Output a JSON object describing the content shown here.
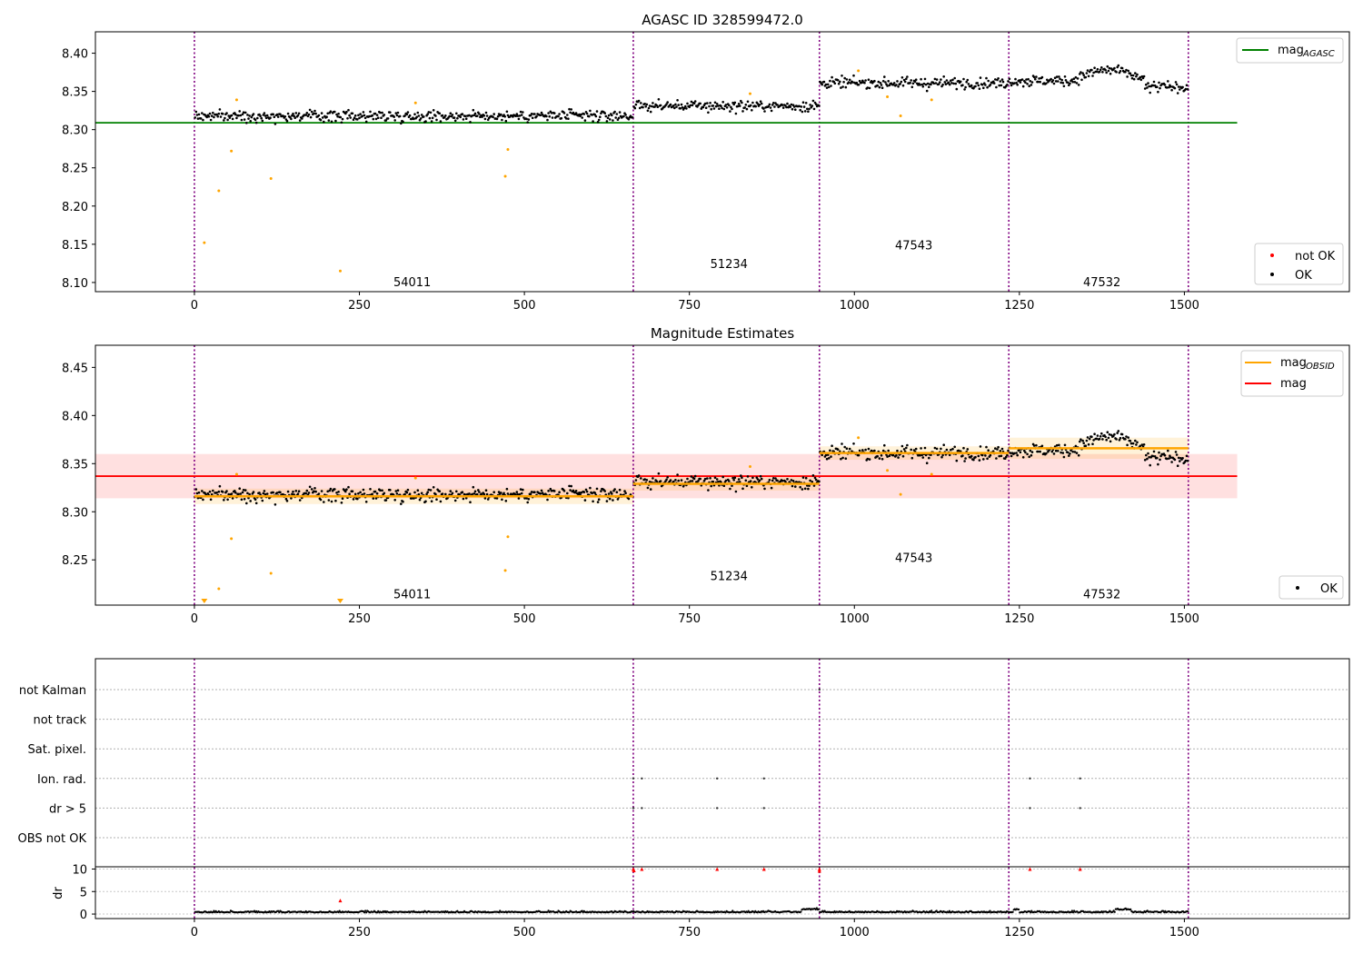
{
  "chart_data": [
    {
      "type": "scatter",
      "title": "AGASC ID 328599472.0",
      "xlim": [
        -150,
        1750
      ],
      "ylim": [
        8.088,
        8.428
      ],
      "xticks": [
        0,
        250,
        500,
        750,
        1000,
        1250,
        1500
      ],
      "yticks": [
        8.1,
        8.15,
        8.2,
        8.25,
        8.3,
        8.35,
        8.4
      ],
      "ytick_labels": [
        "8.10",
        "8.15",
        "8.20",
        "8.25",
        "8.30",
        "8.35",
        "8.40"
      ],
      "obs_boundaries": [
        0,
        665,
        947,
        1234,
        1506
      ],
      "obsids": [
        {
          "label": "54011",
          "x": 330,
          "y": 8.095
        },
        {
          "label": "51234",
          "x": 810,
          "y": 8.119
        },
        {
          "label": "47543",
          "x": 1090,
          "y": 8.143
        },
        {
          "label": "47532",
          "x": 1375,
          "y": 8.095
        }
      ],
      "mag_agasc": {
        "value": 8.309,
        "x_range": [
          -150,
          1580
        ],
        "color": "#008000"
      },
      "segments_ok": [
        {
          "x": [
            0,
            665
          ],
          "level": 8.318
        },
        {
          "x": [
            665,
            947
          ],
          "level": 8.331
        },
        {
          "x": [
            947,
            1234
          ],
          "level": 8.361
        },
        {
          "x": [
            1234,
            1506
          ],
          "level": 8.364
        }
      ],
      "not_ok_points": [
        {
          "x": 15,
          "y": 8.152
        },
        {
          "x": 37,
          "y": 8.22
        },
        {
          "x": 56,
          "y": 8.272
        },
        {
          "x": 64,
          "y": 8.339
        },
        {
          "x": 116,
          "y": 8.236
        },
        {
          "x": 221,
          "y": 8.115
        },
        {
          "x": 335,
          "y": 8.335
        },
        {
          "x": 471,
          "y": 8.239
        },
        {
          "x": 475,
          "y": 8.274
        },
        {
          "x": 842,
          "y": 8.347
        },
        {
          "x": 1006,
          "y": 8.377
        },
        {
          "x": 1050,
          "y": 8.343
        },
        {
          "x": 1070,
          "y": 8.318
        },
        {
          "x": 1117,
          "y": 8.339
        }
      ],
      "legend_upper": [
        {
          "label": "mag",
          "sub": "AGASC",
          "color": "#008000"
        }
      ],
      "legend_lower": [
        {
          "label": "not OK",
          "color": "#ff0000"
        },
        {
          "label": "OK",
          "color": "#000000"
        }
      ]
    },
    {
      "type": "scatter",
      "title": "Magnitude Estimates",
      "xlim": [
        -150,
        1750
      ],
      "ylim": [
        8.203,
        8.473
      ],
      "xticks": [
        0,
        250,
        500,
        750,
        1000,
        1250,
        1500
      ],
      "yticks": [
        8.25,
        8.3,
        8.35,
        8.4,
        8.45
      ],
      "ytick_labels": [
        "8.25",
        "8.30",
        "8.35",
        "8.40",
        "8.45"
      ],
      "obs_boundaries": [
        0,
        665,
        947,
        1234,
        1506
      ],
      "obsids": [
        {
          "label": "54011",
          "x": 330,
          "y": 8.21
        },
        {
          "label": "51234",
          "x": 810,
          "y": 8.229
        },
        {
          "label": "47543",
          "x": 1090,
          "y": 8.248
        },
        {
          "label": "47532",
          "x": 1375,
          "y": 8.21
        }
      ],
      "mag": {
        "value": 8.337,
        "band": [
          8.314,
          8.36
        ],
        "x_range": [
          -150,
          1580
        ],
        "color": "#ff0000"
      },
      "mag_obsid": [
        {
          "x": [
            0,
            665
          ],
          "value": 8.316,
          "band": [
            8.308,
            8.324
          ]
        },
        {
          "x": [
            665,
            947
          ],
          "value": 8.329,
          "band": [
            8.322,
            8.336
          ]
        },
        {
          "x": [
            947,
            1234
          ],
          "value": 8.361,
          "band": [
            8.354,
            8.368
          ]
        },
        {
          "x": [
            1234,
            1506
          ],
          "value": 8.366,
          "band": [
            8.355,
            8.377
          ]
        }
      ],
      "not_ok_points": [
        {
          "x": 37,
          "y": 8.22
        },
        {
          "x": 56,
          "y": 8.272
        },
        {
          "x": 64,
          "y": 8.339
        },
        {
          "x": 116,
          "y": 8.236
        },
        {
          "x": 335,
          "y": 8.335
        },
        {
          "x": 471,
          "y": 8.239
        },
        {
          "x": 475,
          "y": 8.274
        },
        {
          "x": 842,
          "y": 8.347
        },
        {
          "x": 1006,
          "y": 8.377
        },
        {
          "x": 1050,
          "y": 8.343
        },
        {
          "x": 1070,
          "y": 8.318
        },
        {
          "x": 1117,
          "y": 8.339
        }
      ],
      "off_scale_points": [
        {
          "x": 15
        },
        {
          "x": 221
        }
      ],
      "legend_upper": [
        {
          "label": "mag",
          "sub": "OBSID",
          "color": "#ffa500"
        },
        {
          "label": "mag",
          "sub": "",
          "color": "#ff0000"
        }
      ],
      "legend_lower": [
        {
          "label": "OK",
          "color": "#000000"
        }
      ]
    },
    {
      "type": "scatter",
      "title": "",
      "xlim": [
        -150,
        1750
      ],
      "xticks": [
        0,
        250,
        500,
        750,
        1000,
        1250,
        1500
      ],
      "obs_boundaries": [
        0,
        665,
        947,
        1234,
        1506
      ],
      "flag_rows": [
        "not Kalman",
        "not track",
        "Sat. pixel.",
        "Ion. rad.",
        "dr > 5",
        "OBS not OK"
      ],
      "flag_points": [
        {
          "row": "Ion. rad.",
          "x": [
            665,
            678,
            792,
            863,
            1266,
            1342
          ]
        },
        {
          "row": "dr > 5",
          "x": [
            665,
            678,
            792,
            863,
            1266,
            1342
          ]
        },
        {
          "row": "not Kalman",
          "x": [
            947
          ]
        }
      ],
      "dr": {
        "ylabel": "dr",
        "yticks": [
          0,
          5,
          10
        ],
        "ylim": [
          -1,
          10.5
        ],
        "high_points": [
          {
            "x": 221,
            "y": 3.0
          },
          {
            "x": 665,
            "y": 10
          },
          {
            "x": 666,
            "y": 9.7
          },
          {
            "x": 678,
            "y": 10
          },
          {
            "x": 792,
            "y": 10
          },
          {
            "x": 863,
            "y": 10
          },
          {
            "x": 947,
            "y": 10
          },
          {
            "x": 947,
            "y": 9.6
          },
          {
            "x": 1266,
            "y": 10
          },
          {
            "x": 1342,
            "y": 10
          }
        ]
      }
    }
  ]
}
